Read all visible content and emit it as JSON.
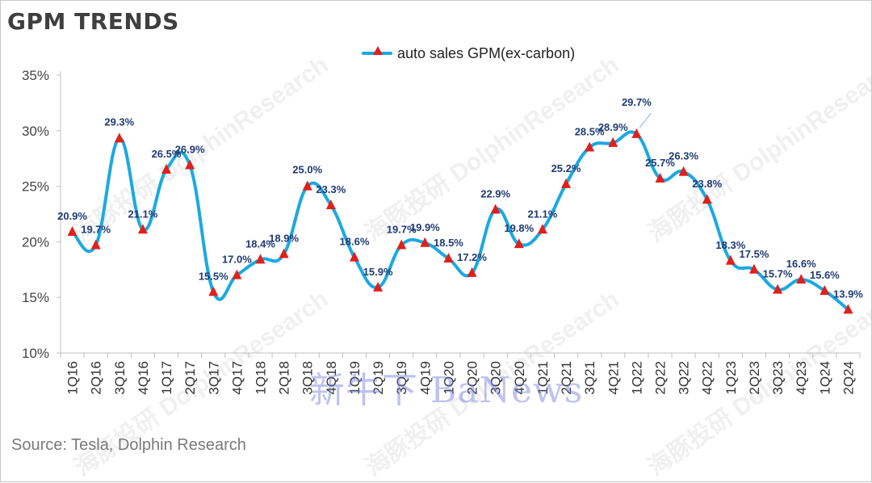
{
  "title": "GPM TRENDS",
  "source": "Source: Tesla, Dolphin Research",
  "watermarks": {
    "text": "海豚投研 DolphinResearch",
    "overlay": "新牛下 BaNews"
  },
  "colors": {
    "line": "#1ba9e1",
    "marker": "#e0201b",
    "label": "#1f3b74",
    "axis": "#bfbfbf"
  },
  "chart_data": {
    "type": "line",
    "title": "GPM TRENDS",
    "xlabel": "",
    "ylabel": "",
    "ylim": [
      10,
      35
    ],
    "yticks": [
      10,
      15,
      20,
      25,
      30,
      35
    ],
    "ytick_labels": [
      "10%",
      "15%",
      "20%",
      "25%",
      "30%",
      "35%"
    ],
    "grid": false,
    "legend_position": "top-center",
    "categories": [
      "1Q16",
      "2Q16",
      "3Q16",
      "4Q16",
      "1Q17",
      "2Q17",
      "3Q17",
      "4Q17",
      "1Q18",
      "2Q18",
      "3Q18",
      "4Q18",
      "1Q19",
      "2Q19",
      "3Q19",
      "4Q19",
      "1Q20",
      "2Q20",
      "3Q20",
      "4Q20",
      "1Q21",
      "2Q21",
      "3Q21",
      "4Q21",
      "1Q22",
      "2Q22",
      "3Q22",
      "4Q22",
      "1Q23",
      "2Q23",
      "3Q23",
      "4Q23",
      "1Q24",
      "2Q24"
    ],
    "series": [
      {
        "name": "auto sales GPM(ex-carbon)",
        "values": [
          20.9,
          19.7,
          29.3,
          21.1,
          26.5,
          26.9,
          15.5,
          17.0,
          18.4,
          18.9,
          25.0,
          23.3,
          18.6,
          15.9,
          19.7,
          19.9,
          18.5,
          17.2,
          22.9,
          19.8,
          21.1,
          25.2,
          28.5,
          28.9,
          29.7,
          25.7,
          26.3,
          23.8,
          18.3,
          17.5,
          15.7,
          16.6,
          15.6,
          13.9
        ],
        "labels": [
          "20.9%",
          "19.7%",
          "29.3%",
          "21.1%",
          "26.5%",
          "26.9%",
          "15.5%",
          "17.0%",
          "18.4%",
          "18.9%",
          "25.0%",
          "23.3%",
          "18.6%",
          "15.9%",
          "19.7%",
          "19.9%",
          "18.5%",
          "17.2%",
          "22.9%",
          "19.8%",
          "21.1%",
          "25.2%",
          "28.5%",
          "28.9%",
          "29.7%",
          "25.7%",
          "26.3%",
          "23.8%",
          "18.3%",
          "17.5%",
          "15.7%",
          "16.6%",
          "15.6%",
          "13.9%"
        ]
      }
    ]
  }
}
